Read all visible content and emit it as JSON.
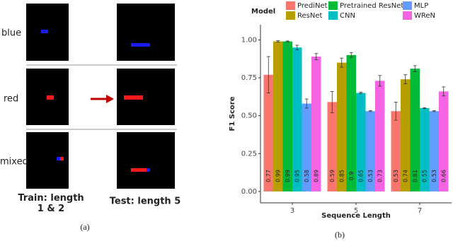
{
  "diagram": {
    "rows": [
      "blue",
      "red",
      "mixed"
    ],
    "train_label": "Train: length 1 & 2",
    "test_label": "Test: length 5",
    "caption": "(a)"
  },
  "chart_data": {
    "type": "bar",
    "caption": "(b)",
    "legend_title": "Model",
    "xlabel": "Sequence Length",
    "ylabel": "F1 Score",
    "categories": [
      "3",
      "5",
      "7"
    ],
    "ylim": [
      -0.075,
      1.1
    ],
    "yticks": [
      {
        "value": 0,
        "label": "0.00"
      },
      {
        "value": 0.25,
        "label": "0.25"
      },
      {
        "value": 0.5,
        "label": "0.50"
      },
      {
        "value": 0.75,
        "label": "0.75"
      },
      {
        "value": 1,
        "label": "1.00"
      }
    ],
    "legend": "top",
    "series": [
      {
        "name": "PrediNet",
        "color": "#f8766d",
        "values": [
          0.77,
          0.59,
          0.53
        ],
        "errors": [
          0.12,
          0.07,
          0.06
        ]
      },
      {
        "name": "ResNet",
        "color": "#b79f00",
        "values": [
          0.99,
          0.85,
          0.74
        ],
        "errors": [
          0.005,
          0.03,
          0.03
        ]
      },
      {
        "name": "Pretrained ResNet",
        "color": "#00ba38",
        "values": [
          0.99,
          0.9,
          0.81
        ],
        "errors": [
          0.003,
          0.015,
          0.02
        ]
      },
      {
        "name": "CNN",
        "color": "#00bfc4",
        "values": [
          0.95,
          0.65,
          0.55
        ],
        "errors": [
          0.015,
          0.005,
          0.003
        ]
      },
      {
        "name": "MLP",
        "color": "#619cff",
        "values": [
          0.58,
          0.53,
          0.53
        ],
        "errors": [
          0.03,
          0.003,
          0.003
        ]
      },
      {
        "name": "WReN",
        "color": "#f564e3",
        "values": [
          0.89,
          0.73,
          0.66
        ],
        "errors": [
          0.02,
          0.035,
          0.03
        ]
      }
    ]
  }
}
